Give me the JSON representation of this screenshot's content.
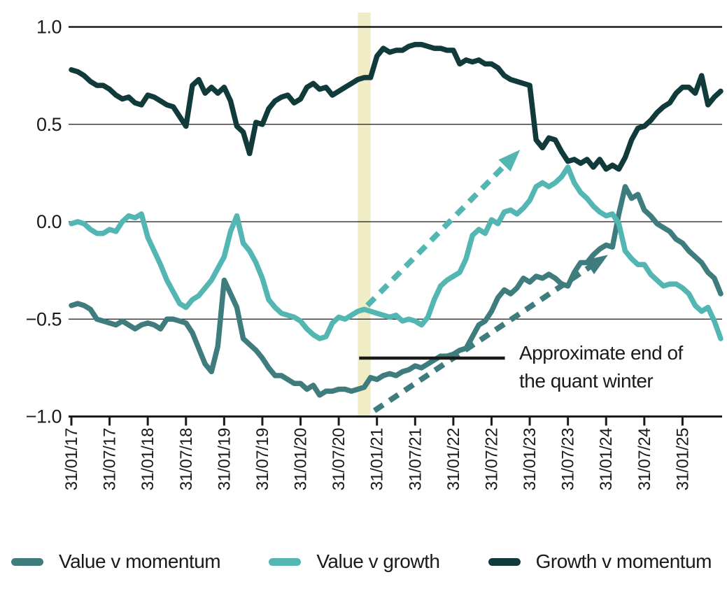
{
  "chart_data": {
    "type": "line",
    "title": "",
    "xlabel": "",
    "ylabel": "",
    "x_start": "2017-01",
    "x_frequency": "monthly",
    "x_tick_every_months": 6,
    "x_tick_labels": [
      "31/01/17",
      "31/07/17",
      "31/01/18",
      "31/07/18",
      "31/01/19",
      "31/07/19",
      "31/01/20",
      "31/07/20",
      "31/01/21",
      "31/07/21",
      "31/01/22",
      "31/07/22",
      "31/01/23",
      "31/07/23",
      "31/01/24",
      "31/07/24",
      "31/01/25"
    ],
    "y_ticks": [
      1.0,
      0.5,
      0.0,
      -0.5,
      -1.0
    ],
    "y_tick_labels": [
      "1.0",
      "0.5",
      "0.0",
      "−0.5",
      "−1.0"
    ],
    "ylim": [
      -1.0,
      1.0
    ],
    "grid": "horizontal",
    "legend_position": "bottom",
    "series": [
      {
        "name": "Value v momentum",
        "color": "#3f7c7d",
        "values": [
          -0.43,
          -0.42,
          -0.43,
          -0.45,
          -0.5,
          -0.51,
          -0.52,
          -0.53,
          -0.51,
          -0.53,
          -0.55,
          -0.53,
          -0.52,
          -0.53,
          -0.55,
          -0.5,
          -0.5,
          -0.51,
          -0.52,
          -0.57,
          -0.65,
          -0.73,
          -0.77,
          -0.64,
          -0.3,
          -0.37,
          -0.44,
          -0.6,
          -0.63,
          -0.66,
          -0.7,
          -0.75,
          -0.79,
          -0.79,
          -0.81,
          -0.83,
          -0.83,
          -0.86,
          -0.84,
          -0.89,
          -0.87,
          -0.87,
          -0.86,
          -0.86,
          -0.87,
          -0.86,
          -0.85,
          -0.8,
          -0.81,
          -0.79,
          -0.78,
          -0.79,
          -0.77,
          -0.76,
          -0.74,
          -0.75,
          -0.73,
          -0.71,
          -0.69,
          -0.69,
          -0.68,
          -0.66,
          -0.65,
          -0.59,
          -0.53,
          -0.51,
          -0.46,
          -0.39,
          -0.35,
          -0.37,
          -0.34,
          -0.29,
          -0.31,
          -0.28,
          -0.29,
          -0.27,
          -0.29,
          -0.32,
          -0.33,
          -0.26,
          -0.21,
          -0.21,
          -0.17,
          -0.14,
          -0.12,
          -0.13,
          0.04,
          0.18,
          0.12,
          0.14,
          0.06,
          0.03,
          -0.01,
          -0.03,
          -0.05,
          -0.09,
          -0.11,
          -0.15,
          -0.18,
          -0.21,
          -0.26,
          -0.29,
          -0.37
        ]
      },
      {
        "name": "Value v growth",
        "color": "#54b6b3",
        "values": [
          -0.01,
          0.0,
          -0.01,
          -0.04,
          -0.06,
          -0.06,
          -0.04,
          -0.05,
          0.0,
          0.03,
          0.02,
          0.04,
          -0.08,
          -0.15,
          -0.22,
          -0.3,
          -0.36,
          -0.42,
          -0.44,
          -0.4,
          -0.38,
          -0.34,
          -0.3,
          -0.24,
          -0.18,
          -0.05,
          0.03,
          -0.11,
          -0.15,
          -0.21,
          -0.29,
          -0.4,
          -0.44,
          -0.47,
          -0.48,
          -0.49,
          -0.51,
          -0.55,
          -0.58,
          -0.6,
          -0.59,
          -0.52,
          -0.49,
          -0.5,
          -0.48,
          -0.46,
          -0.45,
          -0.46,
          -0.47,
          -0.48,
          -0.49,
          -0.48,
          -0.51,
          -0.5,
          -0.51,
          -0.53,
          -0.49,
          -0.4,
          -0.33,
          -0.3,
          -0.28,
          -0.26,
          -0.19,
          -0.07,
          -0.04,
          -0.06,
          0.01,
          -0.01,
          0.05,
          0.06,
          0.04,
          0.07,
          0.11,
          0.18,
          0.2,
          0.18,
          0.2,
          0.23,
          0.28,
          0.2,
          0.15,
          0.12,
          0.08,
          0.05,
          0.03,
          0.04,
          -0.01,
          -0.15,
          -0.19,
          -0.22,
          -0.22,
          -0.27,
          -0.3,
          -0.33,
          -0.32,
          -0.32,
          -0.34,
          -0.37,
          -0.43,
          -0.46,
          -0.44,
          -0.51,
          -0.6
        ]
      },
      {
        "name": "Growth v momentum",
        "color": "#113a3b",
        "values": [
          0.78,
          0.77,
          0.75,
          0.72,
          0.7,
          0.7,
          0.68,
          0.65,
          0.63,
          0.64,
          0.61,
          0.6,
          0.65,
          0.64,
          0.62,
          0.6,
          0.59,
          0.54,
          0.49,
          0.7,
          0.73,
          0.66,
          0.69,
          0.66,
          0.69,
          0.62,
          0.49,
          0.46,
          0.35,
          0.51,
          0.5,
          0.58,
          0.62,
          0.64,
          0.65,
          0.61,
          0.63,
          0.69,
          0.71,
          0.68,
          0.69,
          0.65,
          0.67,
          0.69,
          0.71,
          0.73,
          0.74,
          0.74,
          0.85,
          0.89,
          0.87,
          0.88,
          0.88,
          0.9,
          0.91,
          0.91,
          0.9,
          0.89,
          0.89,
          0.88,
          0.88,
          0.81,
          0.83,
          0.82,
          0.83,
          0.81,
          0.81,
          0.79,
          0.75,
          0.73,
          0.72,
          0.71,
          0.7,
          0.42,
          0.38,
          0.43,
          0.42,
          0.36,
          0.31,
          0.32,
          0.3,
          0.32,
          0.28,
          0.32,
          0.27,
          0.29,
          0.27,
          0.33,
          0.42,
          0.48,
          0.49,
          0.52,
          0.56,
          0.59,
          0.61,
          0.66,
          0.69,
          0.69,
          0.66,
          0.75,
          0.6,
          0.64,
          0.67
        ]
      }
    ],
    "highlight_band": {
      "from_month": "2020-10",
      "to_month": "2020-12",
      "color": "#f0ecc5"
    },
    "annotation": {
      "text_lines": [
        "Approximate end of",
        "the quant winter"
      ],
      "text_color": "#1a1a1a",
      "pointer_line": {
        "y_value": -0.7,
        "from_month_index": 45.2,
        "to_month_index": 68.1,
        "color": "#1a1a1a"
      }
    },
    "arrows": [
      {
        "style": "dashed",
        "color": "#54b6b3",
        "from": {
          "month_index": 46.5,
          "value": -0.43
        },
        "to": {
          "month_index": 70.5,
          "value": 0.37
        }
      },
      {
        "style": "dashed",
        "color": "#3f7c7d",
        "from": {
          "month_index": 47.6,
          "value": -0.97
        },
        "to": {
          "month_index": 84.3,
          "value": -0.17
        }
      }
    ]
  }
}
